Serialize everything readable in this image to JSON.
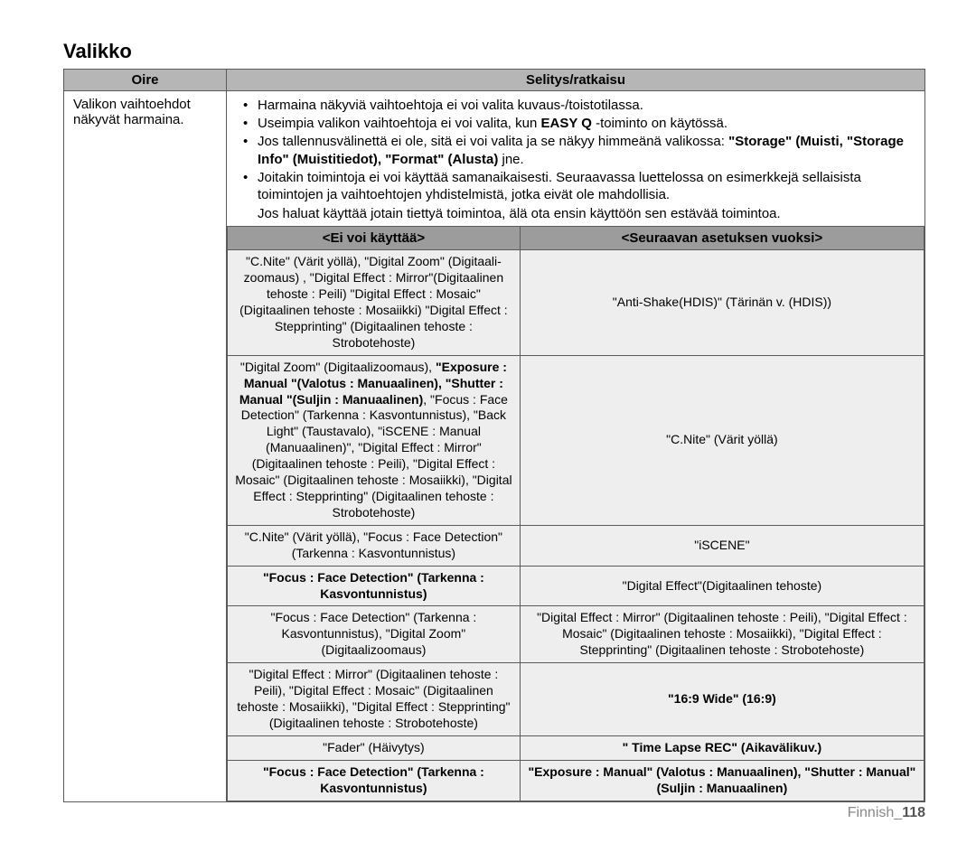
{
  "title": "Valikko",
  "header": {
    "oire": "Oire",
    "selitys": "Selitys/ratkaisu"
  },
  "oire_text": "Valikon vaihtoehdot näkyvät harmaina.",
  "bullets": [
    {
      "type": "li",
      "segments": [
        {
          "t": "Harmaina näkyviä vaihtoehtoja ei voi valita kuvaus-/toistotilassa."
        }
      ]
    },
    {
      "type": "li",
      "segments": [
        {
          "t": "Useimpia valikon vaihtoehtoja ei voi valita, kun "
        },
        {
          "t": "EASY Q",
          "b": true
        },
        {
          "t": " -toiminto on käytössä."
        }
      ]
    },
    {
      "type": "li",
      "segments": [
        {
          "t": "Jos tallennusvälinettä ei ole, sitä ei voi valita ja se näkyy himmeänä valikossa:  "
        },
        {
          "t": "\"Storage\" (Muisti, \"Storage Info\" (Muistitiedot), \"Format\" (Alusta)",
          "b": true
        },
        {
          "t": " jne."
        }
      ]
    },
    {
      "type": "li",
      "segments": [
        {
          "t": "Joitakin toimintoja ei voi käyttää samanaikaisesti. Seuraavassa luettelossa on esimerkkejä sellaisista toimintojen ja vaihtoehtojen yhdistelmistä, jotka eivät ole mahdollisia."
        }
      ]
    },
    {
      "type": "follow",
      "segments": [
        {
          "t": "Jos haluat käyttää jotain tiettyä toimintoa, älä ota ensin käyttöön sen estävää toimintoa."
        }
      ]
    }
  ],
  "inner_headers": {
    "left": "<Ei voi käyttää>",
    "right": "<Seuraavan asetuksen vuoksi>"
  },
  "inner_rows": [
    {
      "left": [
        {
          "t": "\"C.Nite\" (Värit yöllä), \"Digital Zoom\" (Digitaali-zoomaus) , \"Digital Effect : Mirror\"(Digitaalinen tehoste : Peili) \"Digital Effect : Mosaic\" (Digitaalinen tehoste : Mosaiikki)  \"Digital Effect : Stepprinting\" (Digitaalinen tehoste : Strobotehoste)"
        }
      ],
      "right": [
        {
          "t": "\"Anti-Shake(HDIS)\" (Tärinän v. (HDIS))"
        }
      ]
    },
    {
      "left": [
        {
          "t": "\"Digital Zoom\" (Digitaalizoomaus), "
        },
        {
          "t": "\"Exposure : Manual \"(Valotus : Manuaalinen), \"Shutter  : Manual \"(Suljin : Manuaalinen)",
          "b": true
        },
        {
          "t": ", \"Focus : Face Detection\" (Tarkenna : Kasvontunnistus), \"Back Light\" (Taustavalo), \"iSCENE : Manual (Manuaalinen)\", \"Digital Effect : Mirror\" (Digitaalinen tehoste : Peili), \"Digital Effect : Mosaic\" (Digitaalinen tehoste : Mosaiikki), \"Digital Effect : Stepprinting\" (Digitaalinen tehoste : Strobotehoste)"
        }
      ],
      "right": [
        {
          "t": "\"C.Nite\" (Värit yöllä)"
        }
      ]
    },
    {
      "left": [
        {
          "t": "\"C.Nite\" (Värit yöllä), \"Focus : Face Detection\" (Tarkenna : Kasvontunnistus)"
        }
      ],
      "right": [
        {
          "t": "\"iSCENE\""
        }
      ]
    },
    {
      "left": [
        {
          "t": "\"Focus : Face Detection\" (Tarkenna : Kasvontunnistus)",
          "b": true
        }
      ],
      "right": [
        {
          "t": "\"Digital Effect\"(Digitaalinen tehoste)"
        }
      ]
    },
    {
      "left": [
        {
          "t": "\"Focus : Face Detection\" (Tarkenna : Kasvontunnistus), \"Digital Zoom\" (Digitaalizoomaus)"
        }
      ],
      "right": [
        {
          "t": "\"Digital Effect : Mirror\" (Digitaalinen tehoste : Peili), \"Digital Effect : Mosaic\" (Digitaalinen tehoste : Mosaiikki), \"Digital Effect : Stepprinting\" (Digitaalinen tehoste : Strobotehoste)"
        }
      ]
    },
    {
      "left": [
        {
          "t": "\"Digital Effect : Mirror\" (Digitaalinen tehoste : Peili), \"Digital Effect : Mosaic\" (Digitaalinen tehoste : Mosaiikki), \"Digital Effect : Stepprinting\" (Digitaalinen tehoste : Strobotehoste)"
        }
      ],
      "right": [
        {
          "t": "\"16:9 Wide\" (16:9)",
          "b": true
        }
      ]
    },
    {
      "left": [
        {
          "t": "\"Fader\" (Häivytys)"
        }
      ],
      "right": [
        {
          "t": "\" Time Lapse REC\" (Aikavälikuv.)",
          "b": true
        }
      ]
    },
    {
      "left": [
        {
          "t": "\"Focus : Face Detection\" (Tarkenna : Kasvontunnistus)",
          "b": true
        }
      ],
      "right": [
        {
          "t": "\"Exposure : Manual\" (Valotus : Manuaalinen), \"Shutter : Manual\" (Suljin : Manuaalinen)",
          "b": true
        }
      ]
    }
  ],
  "footer": {
    "lang": "Finnish",
    "sep": "_",
    "page": "118"
  }
}
